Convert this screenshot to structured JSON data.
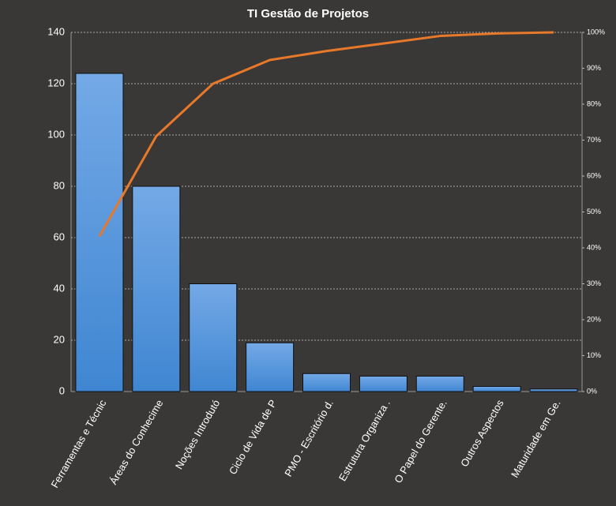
{
  "chart_data": {
    "type": "pareto",
    "title": "TI Gestão  de Projetos",
    "categories": [
      "Ferramentas e Técnic",
      "Áreas do Conhecime",
      "Noções Introdutó",
      "Ciclo de Vida de P",
      "PMO - Escritório d.",
      "Estrutura Organiza .",
      "O Papel do Gerente.",
      "Outros Aspectos",
      "Maturidade em Ge."
    ],
    "series": [
      {
        "type": "bar",
        "color": "#4a8fd6",
        "values": [
          124,
          80,
          42,
          19,
          7,
          6,
          6,
          2,
          1
        ]
      },
      {
        "type": "line",
        "axis": "y2",
        "color": "#e8782a",
        "values": [
          43.2,
          71.1,
          85.7,
          92.3,
          94.8,
          96.9,
          99.0,
          99.7,
          100
        ]
      }
    ],
    "ylim": [
      0,
      140
    ],
    "yticks": [
      0,
      20,
      40,
      60,
      80,
      100,
      120,
      140
    ],
    "y2lim": [
      0,
      100
    ],
    "y2ticks": [
      {
        "value": 0,
        "label": "0%"
      },
      {
        "value": 10,
        "label": "10%"
      },
      {
        "value": 20,
        "label": "20%"
      },
      {
        "value": 30,
        "label": "30%"
      },
      {
        "value": 40,
        "label": "40%"
      },
      {
        "value": 50,
        "label": "50%"
      },
      {
        "value": 60,
        "label": "60%"
      },
      {
        "value": 70,
        "label": "70%"
      },
      {
        "value": 80,
        "label": "80%"
      },
      {
        "value": 90,
        "label": "90%"
      },
      {
        "value": 100,
        "label": "100%"
      }
    ],
    "grid": true
  }
}
